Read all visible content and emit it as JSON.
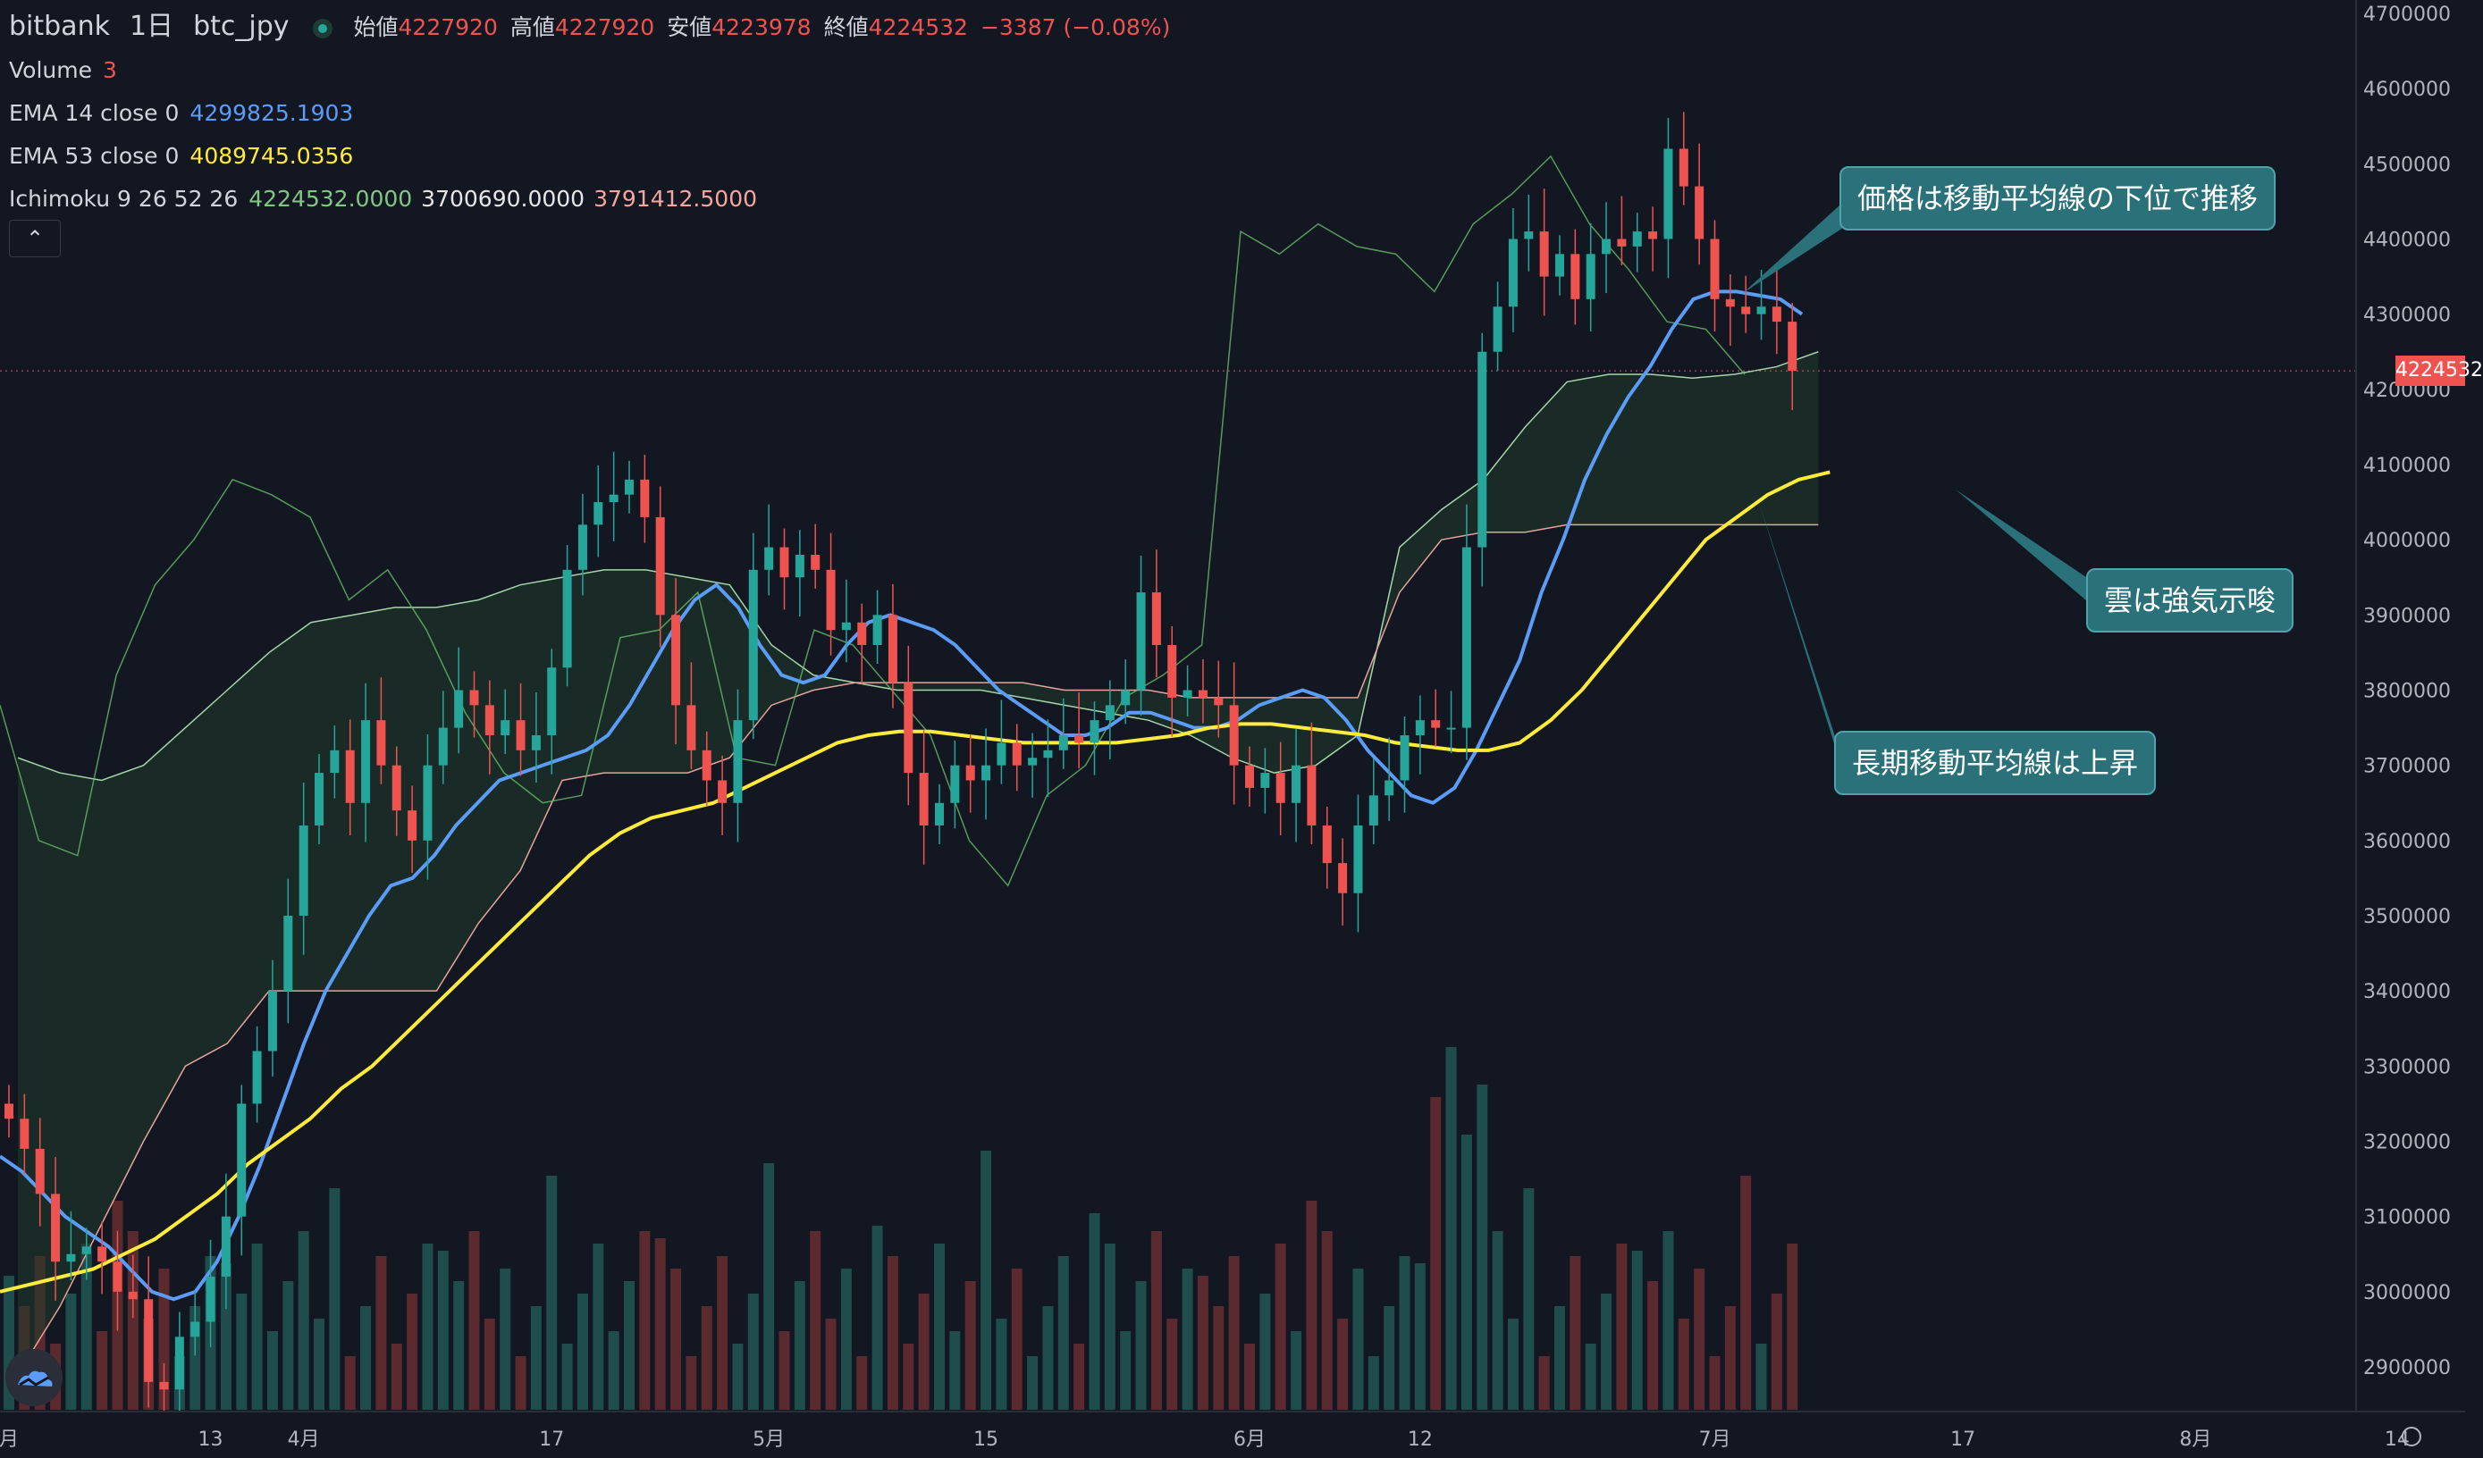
{
  "header": {
    "exchange": "bitbank",
    "interval": "1日",
    "symbol": "btc_jpy",
    "ohlc": [
      {
        "label": "始値",
        "value": "4227920"
      },
      {
        "label": "高値",
        "value": "4227920"
      },
      {
        "label": "安値",
        "value": "4223978"
      },
      {
        "label": "終値",
        "value": "4224532"
      },
      {
        "label": "",
        "value": "−3387 (−0.08%)"
      }
    ]
  },
  "indicators": [
    {
      "label": "Volume",
      "values": [
        "3"
      ],
      "colors": [
        "#ef5350"
      ]
    },
    {
      "label": "EMA 14 close 0",
      "values": [
        "4299825.1903"
      ],
      "colors": [
        "#5b9cf6"
      ]
    },
    {
      "label": "EMA 53 close 0",
      "values": [
        "4089745.0356"
      ],
      "colors": [
        "#ffeb3b"
      ]
    },
    {
      "label": "Ichimoku 9 26 52 26",
      "values": [
        "4224532.0000",
        "3700690.0000",
        "3791412.5000"
      ],
      "colors": [
        "#81c784",
        "#e6e6e6",
        "#f4a6a0"
      ]
    }
  ],
  "collapse_icon": "chevron-up-icon",
  "last_price_tag": "4224532",
  "annotations": [
    "価格は移動平均線の下位で推移",
    "雲は強気示唆",
    "長期移動平均線は上昇"
  ],
  "colors": {
    "background": "#131722",
    "up": "#26a69a",
    "down": "#ef5350",
    "ema14": "#5b9cf6",
    "ema53": "#ffeb3b",
    "callout": "#2a7179"
  },
  "chart_data": {
    "type": "candlestick",
    "y_axis_ticks": [
      "4700000",
      "4600000",
      "4500000",
      "4400000",
      "4300000",
      "4200000",
      "4100000",
      "4000000",
      "3900000",
      "3800000",
      "3700000",
      "3600000",
      "3500000",
      "3400000",
      "3300000",
      "3200000",
      "3100000",
      "3000000",
      "2900000"
    ],
    "ylim": [
      2860000,
      4730000
    ],
    "x_axis_ticks": [
      {
        "label": "月",
        "day": 0
      },
      {
        "label": "13",
        "day": 13
      },
      {
        "label": "4月",
        "day": 19
      },
      {
        "label": "17",
        "day": 35
      },
      {
        "label": "5月",
        "day": 49
      },
      {
        "label": "15",
        "day": 63
      },
      {
        "label": "6月",
        "day": 80
      },
      {
        "label": "12",
        "day": 91
      },
      {
        "label": "7月",
        "day": 110
      },
      {
        "label": "17",
        "day": 126
      },
      {
        "label": "8月",
        "day": 141
      },
      {
        "label": "14",
        "day": 154
      }
    ],
    "close": [
      3230000,
      3190000,
      3130000,
      3040000,
      3050000,
      3060000,
      3040000,
      3000000,
      2990000,
      2880000,
      2870000,
      2940000,
      2960000,
      3020000,
      3100000,
      3250000,
      3320000,
      3400000,
      3500000,
      3620000,
      3690000,
      3720000,
      3650000,
      3760000,
      3700000,
      3640000,
      3600000,
      3700000,
      3750000,
      3800000,
      3780000,
      3740000,
      3760000,
      3720000,
      3740000,
      3830000,
      3960000,
      4020000,
      4050000,
      4060000,
      4080000,
      4030000,
      3900000,
      3780000,
      3720000,
      3680000,
      3650000,
      3760000,
      3960000,
      3990000,
      3950000,
      3980000,
      3960000,
      3880000,
      3890000,
      3860000,
      3900000,
      3810000,
      3690000,
      3620000,
      3650000,
      3700000,
      3680000,
      3700000,
      3730000,
      3700000,
      3710000,
      3720000,
      3740000,
      3730000,
      3760000,
      3780000,
      3800000,
      3930000,
      3860000,
      3790000,
      3800000,
      3790000,
      3780000,
      3700000,
      3670000,
      3690000,
      3650000,
      3700000,
      3620000,
      3570000,
      3530000,
      3620000,
      3660000,
      3680000,
      3740000,
      3760000,
      3750000,
      3750000,
      3990000,
      4250000,
      4310000,
      4400000,
      4410000,
      4350000,
      4380000,
      4320000,
      4380000,
      4400000,
      4390000,
      4410000,
      4400000,
      4520000,
      4470000,
      4400000,
      4320000,
      4310000,
      4300000,
      4310000,
      4290000,
      4224532
    ],
    "ema14": [
      3180000,
      3160000,
      3130000,
      3100000,
      3080000,
      3060000,
      3030000,
      3000000,
      2990000,
      3000000,
      3040000,
      3100000,
      3170000,
      3250000,
      3330000,
      3400000,
      3450000,
      3500000,
      3540000,
      3550000,
      3580000,
      3620000,
      3650000,
      3680000,
      3690000,
      3700000,
      3710000,
      3720000,
      3740000,
      3780000,
      3830000,
      3880000,
      3920000,
      3940000,
      3910000,
      3860000,
      3820000,
      3810000,
      3820000,
      3860000,
      3890000,
      3900000,
      3890000,
      3880000,
      3860000,
      3830000,
      3800000,
      3780000,
      3760000,
      3740000,
      3740000,
      3750000,
      3770000,
      3770000,
      3760000,
      3750000,
      3750000,
      3760000,
      3780000,
      3790000,
      3800000,
      3790000,
      3760000,
      3720000,
      3690000,
      3660000,
      3650000,
      3670000,
      3720000,
      3780000,
      3840000,
      3930000,
      4000000,
      4080000,
      4140000,
      4190000,
      4230000,
      4280000,
      4320000,
      4330000,
      4330000,
      4325000,
      4320000,
      4300000
    ],
    "ema53": [
      3000000,
      3010000,
      3020000,
      3030000,
      3050000,
      3070000,
      3100000,
      3130000,
      3170000,
      3200000,
      3230000,
      3270000,
      3300000,
      3340000,
      3380000,
      3420000,
      3460000,
      3500000,
      3540000,
      3580000,
      3610000,
      3630000,
      3640000,
      3650000,
      3670000,
      3690000,
      3710000,
      3730000,
      3740000,
      3745000,
      3745000,
      3740000,
      3735000,
      3730000,
      3730000,
      3730000,
      3730000,
      3735000,
      3740000,
      3750000,
      3755000,
      3755000,
      3750000,
      3745000,
      3740000,
      3730000,
      3725000,
      3720000,
      3720000,
      3730000,
      3760000,
      3800000,
      3850000,
      3900000,
      3950000,
      4000000,
      4030000,
      4060000,
      4080000,
      4090000
    ],
    "span_a": [
      3710000,
      3690000,
      3680000,
      3700000,
      3750000,
      3800000,
      3850000,
      3890000,
      3900000,
      3910000,
      3910000,
      3920000,
      3940000,
      3950000,
      3960000,
      3960000,
      3950000,
      3940000,
      3860000,
      3820000,
      3810000,
      3800000,
      3800000,
      3800000,
      3790000,
      3780000,
      3770000,
      3760000,
      3740000,
      3710000,
      3690000,
      3700000,
      3740000,
      3990000,
      4040000,
      4080000,
      4150000,
      4210000,
      4220000,
      4220000,
      4215000,
      4220000,
      4230000,
      4250000
    ],
    "span_b": [
      2890000,
      2980000,
      3090000,
      3200000,
      3300000,
      3330000,
      3400000,
      3400000,
      3400000,
      3400000,
      3400000,
      3490000,
      3560000,
      3680000,
      3690000,
      3690000,
      3690000,
      3710000,
      3780000,
      3800000,
      3810000,
      3810000,
      3810000,
      3810000,
      3810000,
      3800000,
      3800000,
      3800000,
      3790000,
      3790000,
      3790000,
      3790000,
      3790000,
      3930000,
      4000000,
      4010000,
      4010000,
      4020000,
      4020000,
      4020000,
      4020000,
      4020000,
      4020000,
      4020000
    ],
    "chikou": [
      3780000,
      3600000,
      3580000,
      3820000,
      3940000,
      4000000,
      4080000,
      4060000,
      4030000,
      3920000,
      3960000,
      3880000,
      3770000,
      3690000,
      3650000,
      3660000,
      3870000,
      3880000,
      3930000,
      3710000,
      3700000,
      3880000,
      3860000,
      3800000,
      3740000,
      3600000,
      3540000,
      3660000,
      3700000,
      3790000,
      3820000,
      3860000,
      4410000,
      4380000,
      4420000,
      4390000,
      4380000,
      4330000,
      4420000,
      4460000,
      4510000,
      4420000,
      4360000,
      4290000,
      4280000,
      4220000
    ]
  }
}
